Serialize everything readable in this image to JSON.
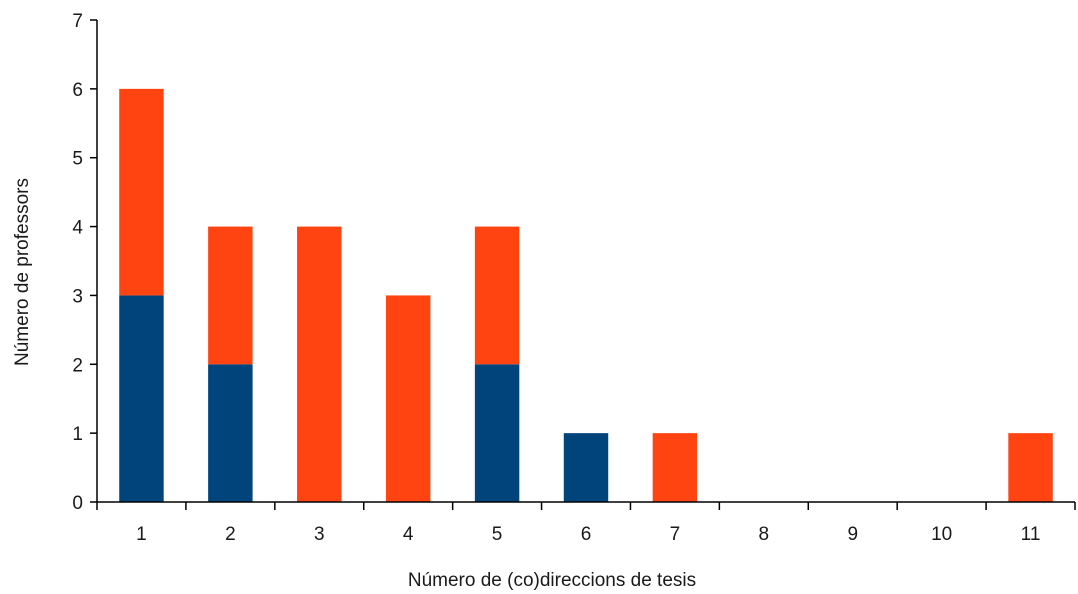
{
  "chart_data": {
    "type": "bar",
    "stacked": true,
    "title": "",
    "xlabel": "Número de (co)direccions de tesis",
    "ylabel": "Número de professors",
    "ylim": [
      0,
      7
    ],
    "yticks": [
      "0",
      "1",
      "2",
      "3",
      "4",
      "5",
      "6",
      "7"
    ],
    "categories": [
      "1",
      "2",
      "3",
      "4",
      "5",
      "6",
      "7",
      "8",
      "9",
      "10",
      "11"
    ],
    "series": [
      {
        "color": "#00447c",
        "values": [
          3,
          2,
          0,
          0,
          2,
          1,
          0,
          0,
          0,
          0,
          0
        ]
      },
      {
        "color": "#ff4411",
        "values": [
          3,
          2,
          4,
          3,
          2,
          0,
          1,
          0,
          0,
          0,
          1
        ]
      }
    ],
    "grid": false,
    "legend": "none"
  }
}
